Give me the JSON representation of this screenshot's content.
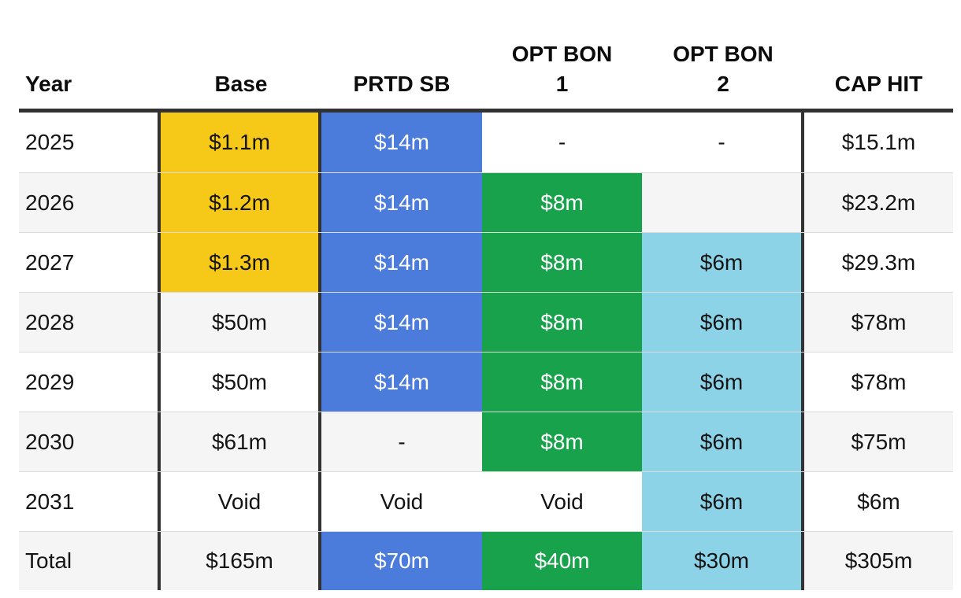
{
  "colors": {
    "yellow": "#F6C818",
    "blue": "#4B7CDB",
    "green": "#18A24C",
    "light_blue": "#8CD3E8",
    "border_dark": "#323232",
    "row_stripe": "#F5F5F5",
    "row_separator": "#DBDBDB",
    "text_dark": "#141414",
    "text_light": "#FFFFFF"
  },
  "table": {
    "columns": [
      {
        "id": "year",
        "label": "Year"
      },
      {
        "id": "base",
        "label": "Base"
      },
      {
        "id": "prtd-sb",
        "label": "PRTD SB"
      },
      {
        "id": "opt-bon-1",
        "label": "OPT BON\n1"
      },
      {
        "id": "opt-bon-2",
        "label": "OPT BON\n2"
      },
      {
        "id": "cap-hit",
        "label": "CAP HIT"
      }
    ],
    "rows": [
      {
        "cells": [
          {
            "v": "2025"
          },
          {
            "v": "$1.1m",
            "color": "yellow"
          },
          {
            "v": "$14m",
            "color": "blue"
          },
          {
            "v": "-"
          },
          {
            "v": "-"
          },
          {
            "v": "$15.1m"
          }
        ]
      },
      {
        "cells": [
          {
            "v": "2026"
          },
          {
            "v": "$1.2m",
            "color": "yellow"
          },
          {
            "v": "$14m",
            "color": "blue"
          },
          {
            "v": "$8m",
            "color": "green"
          },
          {
            "v": ""
          },
          {
            "v": "$23.2m"
          }
        ]
      },
      {
        "cells": [
          {
            "v": "2027"
          },
          {
            "v": "$1.3m",
            "color": "yellow"
          },
          {
            "v": "$14m",
            "color": "blue"
          },
          {
            "v": "$8m",
            "color": "green"
          },
          {
            "v": "$6m",
            "color": "light_blue"
          },
          {
            "v": "$29.3m"
          }
        ]
      },
      {
        "cells": [
          {
            "v": "2028"
          },
          {
            "v": "$50m"
          },
          {
            "v": "$14m",
            "color": "blue"
          },
          {
            "v": "$8m",
            "color": "green"
          },
          {
            "v": "$6m",
            "color": "light_blue"
          },
          {
            "v": "$78m"
          }
        ]
      },
      {
        "cells": [
          {
            "v": "2029"
          },
          {
            "v": "$50m"
          },
          {
            "v": "$14m",
            "color": "blue"
          },
          {
            "v": "$8m",
            "color": "green"
          },
          {
            "v": "$6m",
            "color": "light_blue"
          },
          {
            "v": "$78m"
          }
        ]
      },
      {
        "cells": [
          {
            "v": "2030"
          },
          {
            "v": "$61m"
          },
          {
            "v": "-"
          },
          {
            "v": "$8m",
            "color": "green"
          },
          {
            "v": "$6m",
            "color": "light_blue"
          },
          {
            "v": "$75m"
          }
        ]
      },
      {
        "cells": [
          {
            "v": "2031"
          },
          {
            "v": "Void"
          },
          {
            "v": "Void"
          },
          {
            "v": "Void"
          },
          {
            "v": "$6m",
            "color": "light_blue"
          },
          {
            "v": "$6m"
          }
        ]
      },
      {
        "total": true,
        "cells": [
          {
            "v": "Total"
          },
          {
            "v": "$165m"
          },
          {
            "v": "$70m",
            "color": "blue"
          },
          {
            "v": "$40m",
            "color": "green"
          },
          {
            "v": "$30m",
            "color": "light_blue"
          },
          {
            "v": "$305m"
          }
        ]
      }
    ]
  },
  "chart_data": {
    "type": "table",
    "columns": [
      "Year",
      "Base",
      "PRTD SB",
      "OPT BON 1",
      "OPT BON 2",
      "CAP HIT"
    ],
    "rows": [
      [
        "2025",
        "$1.1m",
        "$14m",
        "-",
        "-",
        "$15.1m"
      ],
      [
        "2026",
        "$1.2m",
        "$14m",
        "$8m",
        "",
        "$23.2m"
      ],
      [
        "2027",
        "$1.3m",
        "$14m",
        "$8m",
        "$6m",
        "$29.3m"
      ],
      [
        "2028",
        "$50m",
        "$14m",
        "$8m",
        "$6m",
        "$78m"
      ],
      [
        "2029",
        "$50m",
        "$14m",
        "$8m",
        "$6m",
        "$78m"
      ],
      [
        "2030",
        "$61m",
        "-",
        "$8m",
        "$6m",
        "$75m"
      ],
      [
        "2031",
        "Void",
        "Void",
        "Void",
        "$6m",
        "$6m"
      ],
      [
        "Total",
        "$165m",
        "$70m",
        "$40m",
        "$30m",
        "$305m"
      ]
    ],
    "highlights": {
      "base_yellow_rows": [
        "2025",
        "2026",
        "2027"
      ],
      "prtd_sb_blue_rows": [
        "2025",
        "2026",
        "2027",
        "2028",
        "2029",
        "Total"
      ],
      "opt_bon_1_green_rows": [
        "2026",
        "2027",
        "2028",
        "2029",
        "2030",
        "Total"
      ],
      "opt_bon_2_light_blue_rows": [
        "2027",
        "2028",
        "2029",
        "2030",
        "2031",
        "Total"
      ]
    }
  }
}
